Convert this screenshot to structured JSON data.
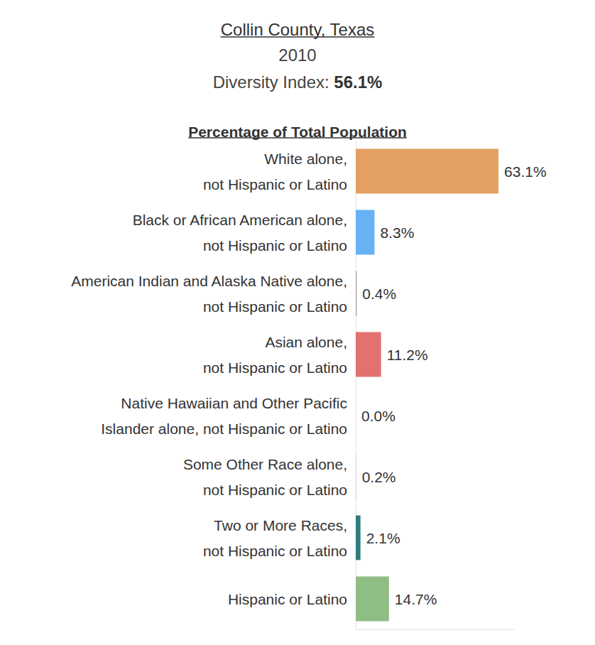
{
  "chart_data": {
    "type": "bar",
    "orientation": "horizontal",
    "title": "Collin County, Texas",
    "subtitle": "2010",
    "diversity_index": {
      "label": "Diversity Index:",
      "value": "56.1%"
    },
    "xlabel": "Percentage of Total Population",
    "categories": [
      "White alone,\nnot Hispanic or Latino",
      "Black or African American alone,\nnot Hispanic or Latino",
      "American Indian and Alaska Native alone,\nnot Hispanic or Latino",
      "Asian alone,\nnot Hispanic or Latino",
      "Native Hawaiian and Other Pacific\nIslander alone, not Hispanic or Latino",
      "Some Other Race alone,\nnot Hispanic or Latino",
      "Two or More Races,\nnot Hispanic or Latino",
      "Hispanic or Latino"
    ],
    "values": [
      63.1,
      8.3,
      0.4,
      11.2,
      0.0,
      0.2,
      2.1,
      14.7
    ],
    "value_labels": [
      "63.1%",
      "8.3%",
      "0.4%",
      "11.2%",
      "0.0%",
      "0.2%",
      "2.1%",
      "14.7%"
    ],
    "colors": [
      "#e3a062",
      "#67b2f5",
      "#9b9b9b",
      "#e2716f",
      "#f2d36b",
      "#d9a8dc",
      "#2f7c7b",
      "#8fbe84"
    ],
    "xlim": [
      0,
      70
    ],
    "grid": false,
    "tick_labels": false,
    "data_labels": true
  }
}
